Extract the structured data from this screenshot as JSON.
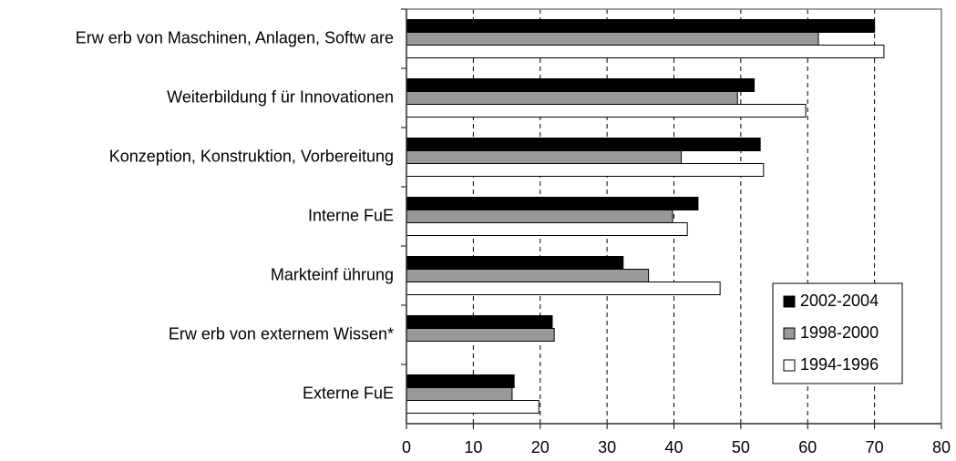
{
  "chart_data": {
    "type": "barh",
    "categories": [
      "Erw erb von Maschinen, Anlagen, Softw are",
      "Weiterbildung f ür Innovationen",
      "Konzeption, Konstruktion, Vorbereitung",
      "Interne FuE",
      "Markteinf ührung",
      "Erw erb von externem Wissen*",
      "Externe FuE"
    ],
    "series": [
      {
        "name": "2002-2004",
        "color": "#000000",
        "values": [
          70.0,
          52.0,
          52.9,
          43.6,
          32.4,
          21.8,
          16.1
        ]
      },
      {
        "name": "1998-2000",
        "color": "#999999",
        "values": [
          61.6,
          49.5,
          41.1,
          39.8,
          36.2,
          22.1,
          15.8
        ]
      },
      {
        "name": "1994-1996",
        "color": "#ffffff",
        "values": [
          71.4,
          59.7,
          53.4,
          42.0,
          46.9,
          null,
          19.8
        ]
      }
    ],
    "xlim": [
      0,
      80
    ],
    "xticks": [
      0,
      10,
      20,
      30,
      40,
      50,
      60,
      70,
      80
    ],
    "grid": true,
    "legend": "lower right"
  }
}
